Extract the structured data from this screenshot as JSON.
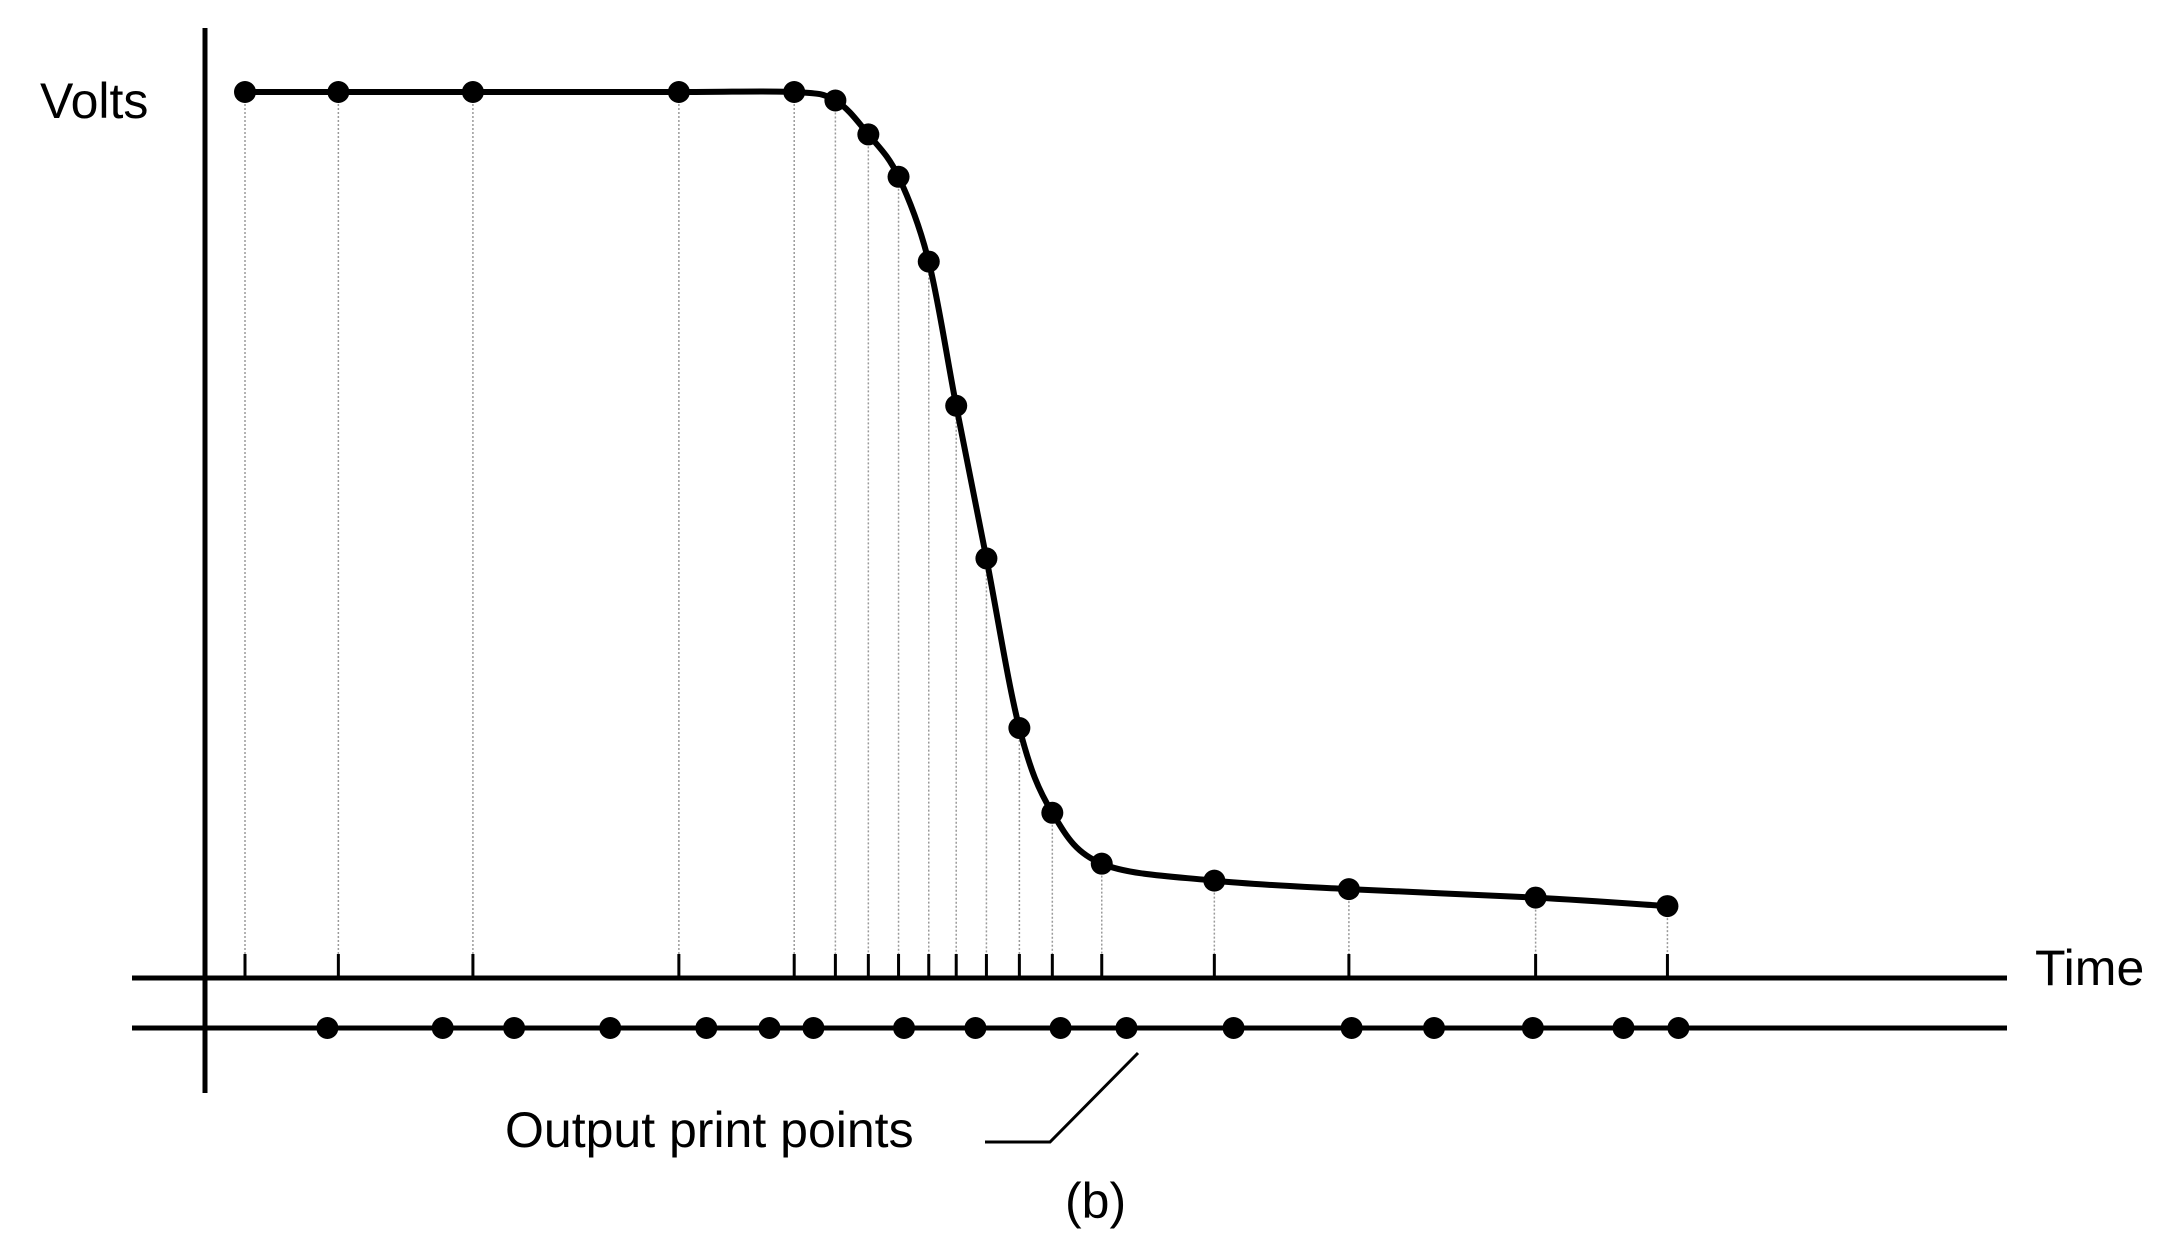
{
  "labels": {
    "y_axis": "Volts",
    "x_axis": "Time",
    "callout": "Output print points",
    "panel": "(b)"
  },
  "chart_data": {
    "type": "line",
    "description_of_axes": "no numeric ticks printed",
    "voltage_samples": [
      {
        "t": 0.0,
        "v": 1.0
      },
      {
        "t": 3.4,
        "v": 1.0
      },
      {
        "t": 8.3,
        "v": 1.0
      },
      {
        "t": 15.8,
        "v": 1.0
      },
      {
        "t": 20.0,
        "v": 1.0
      },
      {
        "t": 21.5,
        "v": 0.99
      },
      {
        "t": 22.7,
        "v": 0.95
      },
      {
        "t": 23.8,
        "v": 0.9
      },
      {
        "t": 24.9,
        "v": 0.8
      },
      {
        "t": 25.9,
        "v": 0.63
      },
      {
        "t": 27.0,
        "v": 0.45
      },
      {
        "t": 28.2,
        "v": 0.25
      },
      {
        "t": 29.4,
        "v": 0.15
      },
      {
        "t": 31.2,
        "v": 0.09
      },
      {
        "t": 35.3,
        "v": 0.07
      },
      {
        "t": 40.2,
        "v": 0.06
      },
      {
        "t": 47.0,
        "v": 0.05
      },
      {
        "t": 51.8,
        "v": 0.04
      }
    ],
    "print_points_t": [
      3.0,
      7.2,
      9.8,
      13.3,
      16.8,
      19.1,
      20.7,
      24.0,
      26.6,
      29.7,
      32.1,
      36.0,
      40.3,
      43.3,
      46.9,
      50.2,
      52.2
    ]
  },
  "colors": {
    "ink": "#000000",
    "sample_guides": "#9a9a9a"
  }
}
